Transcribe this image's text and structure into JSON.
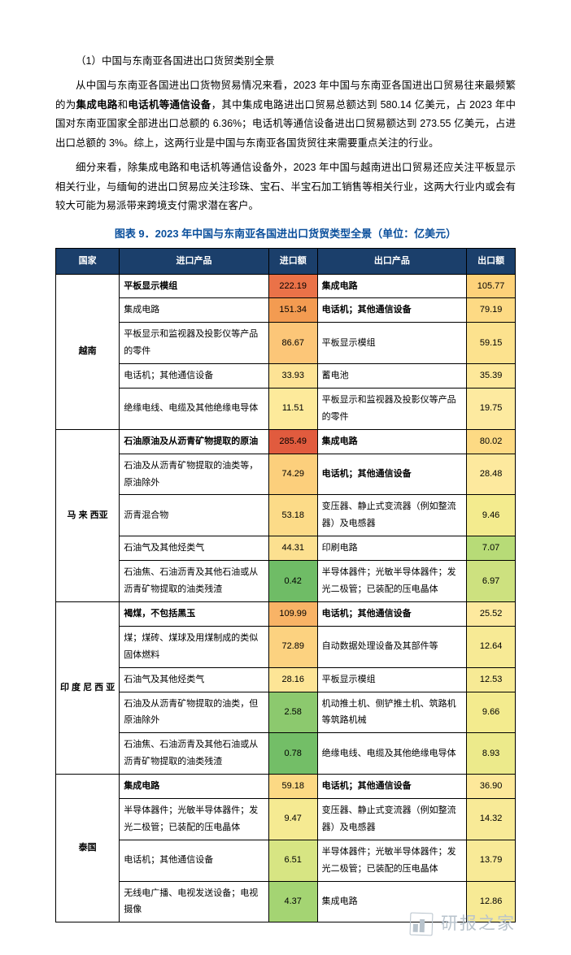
{
  "section_num": "（1）中国与东南亚各国进出口货贸类别全景",
  "paragraphs": [
    {
      "pre": "从中国与东南亚各国进出口货物贸易情况来看，2023 年中国与东南亚各国进出口贸易往来最频繁的为",
      "b1": "集成电路",
      "mid1": "和",
      "b2": "电话机等通信设备",
      "post": "，其中集成电路进出口贸易总额达到 580.14 亿美元，占 2023 年中国对东南亚国家全部进出口总额的 6.36%；电话机等通信设备进出口贸易额达到 273.55 亿美元，占进出口总额的 3%。综上，这两行业是中国与东南亚各国货贸往来需要重点关注的行业。"
    },
    {
      "plain": "细分来看，除集成电路和电话机等通信设备外，2023 年中国与越南进出口贸易还应关注平板显示相关行业，与缅甸的进出口贸易应关注珍珠、宝石、半宝石加工销售等相关行业，这两大行业内或会有较大可能为易派带来跨境支付需求潜在客户。"
    }
  ],
  "figure_title": "图表 9．2023 年中国与东南亚各国进出口货贸类型全景（单位：亿美元）",
  "headers": {
    "country": "国家",
    "imp_prod": "进口产品",
    "imp_val": "进口额",
    "exp_prod": "出口产品",
    "exp_val": "出口额"
  },
  "countries": [
    {
      "name": "越南",
      "rows": [
        {
          "ip": "平板显示模组",
          "ip_bold": true,
          "iv": "222.19",
          "ic": "#ea7248",
          "ep": "集成电路",
          "ep_bold": true,
          "ev": "105.77",
          "ec": "#fdd27a"
        },
        {
          "ip": "集成电路",
          "iv": "151.34",
          "ic": "#f39b51",
          "ep": "电话机；其他通信设备",
          "ep_bold": true,
          "ev": "79.19",
          "ec": "#fdda84"
        },
        {
          "ip": "平板显示和监视器及投影仪等产品的零件",
          "iv": "86.67",
          "ic": "#fcc678",
          "ep": "平板显示模组",
          "ev": "59.15",
          "ec": "#fce28e"
        },
        {
          "ip": "电话机；其他通信设备",
          "iv": "33.93",
          "ic": "#fde395",
          "ep": "蓄电池",
          "ev": "35.39",
          "ec": "#fde89a"
        },
        {
          "ip": "绝缘电线、电缆及其他绝缘电导体",
          "iv": "11.51",
          "ic": "#fdea9b",
          "ep": "平板显示和监视器及投影仪等产品的零件",
          "ev": "19.75",
          "ec": "#fdeaa0"
        }
      ]
    },
    {
      "name": "马 来 西亚",
      "rows": [
        {
          "ip": "石油原油及从沥青矿物提取的原油",
          "ip_bold": true,
          "iv": "285.49",
          "ic": "#e15b3e",
          "ep": "集成电路",
          "ep_bold": true,
          "ev": "80.02",
          "ec": "#fdda84"
        },
        {
          "ip": "石油及从沥青矿物提取的油类等，原油除外",
          "iv": "74.29",
          "ic": "#fccf7c",
          "ep": "电话机；其他通信设备",
          "ep_bold": true,
          "ev": "28.48",
          "ec": "#fde99e"
        },
        {
          "ip": "沥青混合物",
          "iv": "53.18",
          "ic": "#fcdb88",
          "ep": "变压器、静止式变流器（例如整流器）及电感器",
          "ev": "9.46",
          "ec": "#f3eb8e"
        },
        {
          "ip": "石油气及其他烃类气",
          "iv": "44.31",
          "ic": "#fce090",
          "ep": "印刷电路",
          "ev": "7.07",
          "ec": "#b7db77"
        },
        {
          "ip": "石油焦、石油沥青及其他石油或从沥青矿物提取的油类残渣",
          "iv": "0.42",
          "ic": "#6fbc66",
          "ep": "半导体器件；光敏半导体器件；发光二极管；已装配的压电晶体",
          "ev": "6.97",
          "ec": "#cde17f"
        }
      ]
    },
    {
      "name": "印 度 尼 西 亚",
      "rows": [
        {
          "ip": "褐煤，不包括黑玉",
          "ip_bold": true,
          "iv": "109.99",
          "ic": "#f8b366",
          "ep": "电话机；其他通信设备",
          "ep_bold": true,
          "ev": "25.52",
          "ec": "#fde99e"
        },
        {
          "ip": "煤；煤砖、煤球及用煤制成的类似固体燃料",
          "iv": "72.89",
          "ic": "#fcd280",
          "ep": "自动数据处理设备及其部件等",
          "ev": "12.64",
          "ec": "#f7ea95"
        },
        {
          "ip": "石油气及其他烃类气",
          "iv": "28.16",
          "ic": "#fde596",
          "ep": "平板显示模组",
          "ev": "12.53",
          "ec": "#f7ea95"
        },
        {
          "ip": "石油及从沥青矿物提取的油类，但原油除外",
          "iv": "2.58",
          "ic": "#8cc96e",
          "ep": "机动推土机、侧铲推土机、筑路机等筑路机械",
          "ev": "9.66",
          "ec": "#f3eb8e"
        },
        {
          "ip": "石油焦、石油沥青及其他石油或从沥青矿物提取的油类残渣",
          "iv": "0.78",
          "ic": "#73be67",
          "ep": "绝缘电线、电缆及其他绝缘电导体",
          "ev": "8.93",
          "ec": "#ecea8b"
        }
      ]
    },
    {
      "name": "泰国",
      "rows": [
        {
          "ip": "集成电路",
          "ip_bold": true,
          "iv": "59.18",
          "ic": "#fcd984",
          "ep": "电话机；其他通信设备",
          "ep_bold": true,
          "ev": "36.90",
          "ec": "#fde89a"
        },
        {
          "ip": "半导体器件；光敏半导体器件；发光二极管；已装配的压电晶体",
          "iv": "9.47",
          "ic": "#f5ea92",
          "ep": "变压器、静止式变流器（例如整流器）及电感器",
          "ev": "14.32",
          "ec": "#f8ea97"
        },
        {
          "ip": "电话机；其他通信设备",
          "iv": "6.51",
          "ic": "#d7e583",
          "ep": "半导体器件；光敏半导体器件；发光二极管；已装配的压电晶体",
          "ev": "13.79",
          "ec": "#f8ea97"
        },
        {
          "ip": "无线电广播、电视发送设备；电视摄像",
          "iv": "4.37",
          "ic": "#a4d473",
          "ep": "集成电路",
          "ev": "12.86",
          "ec": "#f7ea95"
        }
      ]
    }
  ],
  "watermark": "研报之家"
}
